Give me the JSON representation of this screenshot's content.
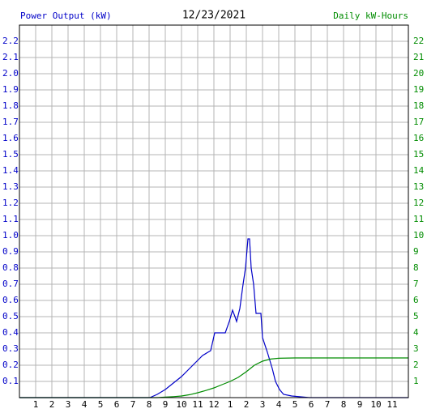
{
  "chart_data": {
    "type": "line",
    "title": "12/23/2021",
    "y_label": "Power Output (kW)",
    "y2_label": "Daily kW-Hours",
    "xlim": [
      0,
      24
    ],
    "xticks": [
      {
        "value": 1,
        "label": "1"
      },
      {
        "value": 2,
        "label": "2"
      },
      {
        "value": 3,
        "label": "3"
      },
      {
        "value": 4,
        "label": "4"
      },
      {
        "value": 5,
        "label": "5"
      },
      {
        "value": 6,
        "label": "6"
      },
      {
        "value": 7,
        "label": "7"
      },
      {
        "value": 8,
        "label": "8"
      },
      {
        "value": 9,
        "label": "9"
      },
      {
        "value": 10,
        "label": "10"
      },
      {
        "value": 11,
        "label": "11"
      },
      {
        "value": 12,
        "label": "12"
      },
      {
        "value": 13,
        "label": "1"
      },
      {
        "value": 14,
        "label": "2"
      },
      {
        "value": 15,
        "label": "3"
      },
      {
        "value": 16,
        "label": "4"
      },
      {
        "value": 17,
        "label": "5"
      },
      {
        "value": 18,
        "label": "6"
      },
      {
        "value": 19,
        "label": "7"
      },
      {
        "value": 20,
        "label": "8"
      },
      {
        "value": 21,
        "label": "9"
      },
      {
        "value": 22,
        "label": "10"
      },
      {
        "value": 23,
        "label": "11"
      }
    ],
    "ylim": [
      0,
      2.3
    ],
    "yticks": [
      0.1,
      0.2,
      0.3,
      0.4,
      0.5,
      0.6,
      0.7,
      0.8,
      0.9,
      {
        "value": 1.0,
        "label": "1.0"
      },
      1.1,
      1.2,
      1.3,
      1.4,
      1.5,
      1.6,
      1.7,
      1.8,
      1.9,
      {
        "value": 2.0,
        "label": "2.0"
      },
      2.1,
      2.2
    ],
    "y2lim": [
      0,
      23
    ],
    "y2ticks": [
      1,
      2,
      3,
      4,
      5,
      6,
      7,
      8,
      9,
      10,
      11,
      12,
      13,
      14,
      15,
      16,
      17,
      18,
      19,
      20,
      21,
      22
    ],
    "grid": true,
    "series": [
      {
        "color": "#0000c8",
        "x": [
          0,
          8.05,
          8.5,
          9,
          9.5,
          10,
          10.5,
          11,
          11.3,
          11.8,
          12.05,
          12.7,
          12.95,
          13.15,
          13.3,
          13.4,
          13.6,
          13.8,
          13.95,
          14.1,
          14.2,
          14.3,
          14.45,
          14.6,
          14.9,
          15,
          15.3,
          15.6,
          15.8,
          16.05,
          16.3,
          16.8,
          17.9,
          24
        ],
        "values": [
          0,
          0,
          0.02,
          0.05,
          0.09,
          0.13,
          0.18,
          0.23,
          0.26,
          0.29,
          0.4,
          0.4,
          0.47,
          0.54,
          0.5,
          0.47,
          0.55,
          0.7,
          0.8,
          0.98,
          0.98,
          0.8,
          0.7,
          0.52,
          0.52,
          0.37,
          0.28,
          0.18,
          0.1,
          0.05,
          0.02,
          0.01,
          0,
          0
        ]
      },
      {
        "color": "#008c00",
        "axis": "y2",
        "x": [
          0,
          8.5,
          9,
          9.5,
          10,
          10.5,
          11,
          11.5,
          12,
          12.5,
          13,
          13.5,
          14,
          14.5,
          15,
          15.5,
          16,
          17,
          24
        ],
        "values": [
          0,
          0,
          0.03,
          0.06,
          0.1,
          0.18,
          0.3,
          0.44,
          0.6,
          0.8,
          1.0,
          1.25,
          1.6,
          2.0,
          2.25,
          2.38,
          2.43,
          2.45,
          2.45
        ]
      }
    ]
  }
}
